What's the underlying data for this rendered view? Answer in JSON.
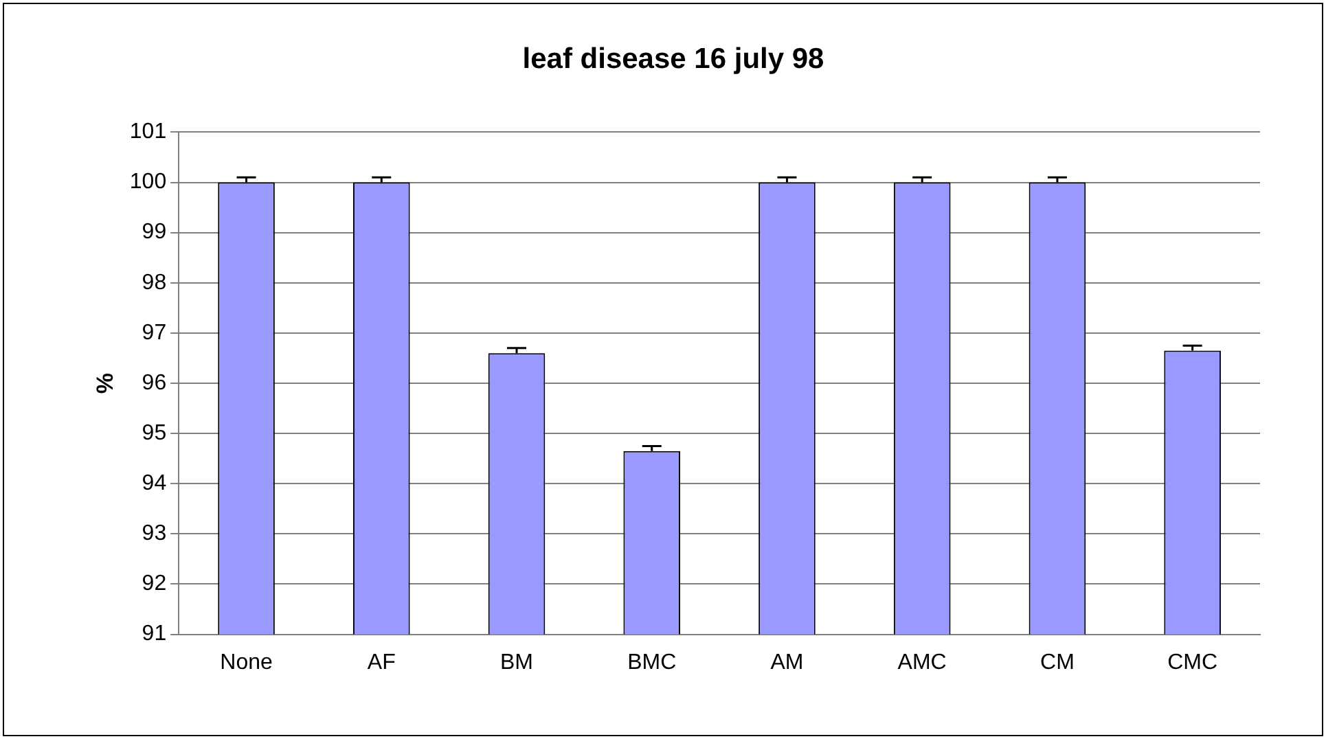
{
  "chart_data": {
    "type": "bar",
    "title": "leaf disease 16 july 98",
    "ylabel": "%",
    "categories": [
      "None",
      "AF",
      "BM",
      "BMC",
      "AM",
      "AMC",
      "CM",
      "CMC"
    ],
    "series": [
      {
        "color": "#9999ff",
        "values": [
          100,
          100,
          96.6,
          94.65,
          100,
          100,
          100,
          96.65
        ],
        "errors": [
          [
            100,
            100.1
          ],
          [
            100,
            100.1
          ],
          [
            96.6,
            96.7
          ],
          [
            94.65,
            94.75
          ],
          [
            100,
            100.1
          ],
          [
            100,
            100.1
          ],
          [
            100,
            100.1
          ],
          [
            96.65,
            96.75
          ]
        ]
      }
    ],
    "ylim": [
      91,
      101
    ],
    "yticks": [
      91,
      92,
      93,
      94,
      95,
      96,
      97,
      98,
      99,
      100,
      101
    ],
    "grid": "y",
    "legend": false
  }
}
